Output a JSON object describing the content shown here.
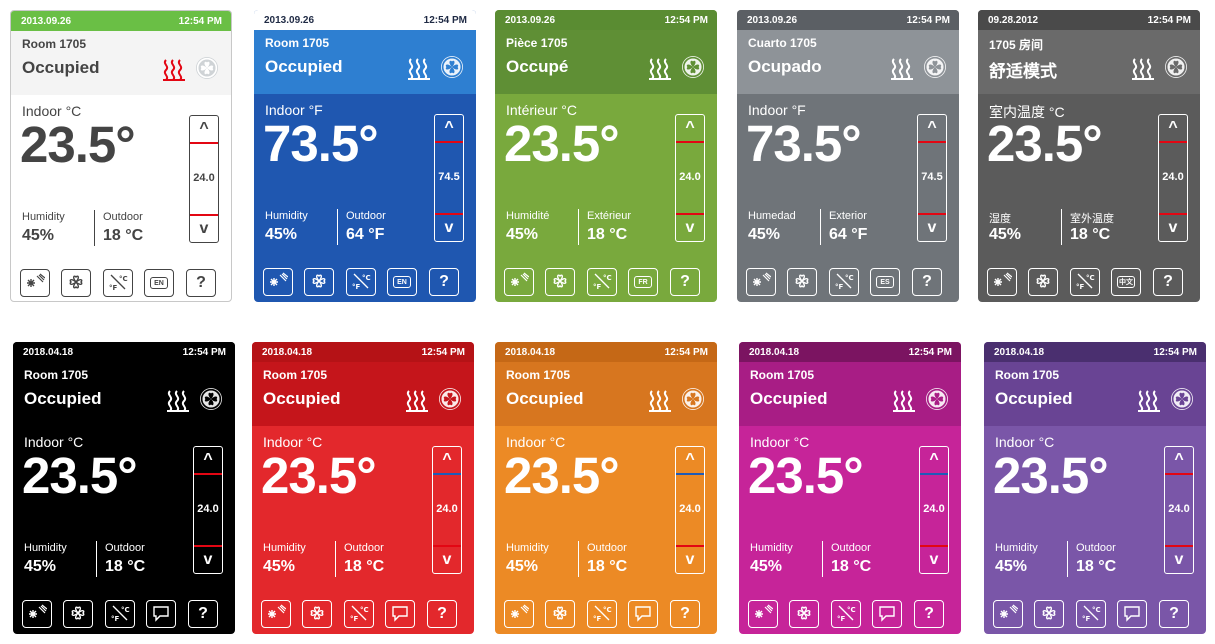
{
  "panels": [
    {
      "date": "2013.09.26",
      "time": "12:54 PM",
      "room": "Room 1705",
      "status": "Occupied",
      "indoor_label": "Indoor °C",
      "temp": "23.5°",
      "setpoint": "24.0",
      "humidity_label": "Humidity",
      "humidity": "45%",
      "outdoor_label": "Outdoor",
      "outdoor": "18 °C",
      "lang": "EN",
      "colors": {
        "topbar": "#6abf45",
        "header": "#f4f4f4",
        "body": "#ffffff",
        "text": "#444444",
        "topbar_text": "#ffffff",
        "accent": "#e30613"
      }
    },
    {
      "date": "2013.09.26",
      "time": "12:54 PM",
      "room": "Room 1705",
      "status": "Occupied",
      "indoor_label": "Indoor °F",
      "temp": "73.5°",
      "setpoint": "74.5",
      "humidity_label": "Humidity",
      "humidity": "45%",
      "outdoor_label": "Outdoor",
      "outdoor": "64 °F",
      "lang": "EN",
      "colors": {
        "topbar": "#ffffff",
        "header": "#2e7fd1",
        "body": "#1f57b0",
        "text": "#ffffff",
        "topbar_text": "#1f2a44",
        "accent": "#e30613"
      }
    },
    {
      "date": "2013.09.26",
      "time": "12:54 PM",
      "room": "Pièce 1705",
      "status": "Occupé",
      "indoor_label": "Intérieur °C",
      "temp": "23.5°",
      "setpoint": "24.0",
      "humidity_label": "Humidité",
      "humidity": "45%",
      "outdoor_label": "Extérieur",
      "outdoor": "18 °C",
      "lang": "FR",
      "colors": {
        "topbar": "#5a8c32",
        "header": "#5f8f35",
        "body": "#79a93d",
        "text": "#ffffff",
        "topbar_text": "#ffffff",
        "accent": "#e30613"
      }
    },
    {
      "date": "2013.09.26",
      "time": "12:54 PM",
      "room": "Cuarto 1705",
      "status": "Ocupado",
      "indoor_label": "Indoor °F",
      "temp": "73.5°",
      "setpoint": "74.5",
      "humidity_label": "Humedad",
      "humidity": "45%",
      "outdoor_label": "Exterior",
      "outdoor": "64 °F",
      "lang": "ES",
      "colors": {
        "topbar": "#5b5f64",
        "header": "#8e9398",
        "body": "#6f7479",
        "text": "#ffffff",
        "topbar_text": "#ffffff",
        "accent": "#e30613"
      }
    },
    {
      "date": "09.28.2012",
      "time": "12:54 PM",
      "room": "1705 房间",
      "status": "舒适模式",
      "indoor_label": "室内温度 °C",
      "temp": "23.5°",
      "setpoint": "24.0",
      "humidity_label": "湿度",
      "humidity": "45%",
      "outdoor_label": "室外温度",
      "outdoor": "18 °C",
      "lang": "中文",
      "colors": {
        "topbar": "#4a4a4a",
        "header": "#6a6a6a",
        "body": "#5b5b5b",
        "text": "#ffffff",
        "topbar_text": "#ffffff",
        "accent": "#e30613"
      }
    },
    {
      "date": "2018.04.18",
      "time": "12:54 PM",
      "room": "Room 1705",
      "status": "Occupied",
      "indoor_label": "Indoor °C",
      "temp": "23.5°",
      "setpoint": "24.0",
      "humidity_label": "Humidity",
      "humidity": "45%",
      "outdoor_label": "Outdoor",
      "outdoor": "18 °C",
      "lang": "",
      "colors": {
        "topbar": "#000000",
        "header": "#000000",
        "body": "#000000",
        "text": "#ffffff",
        "topbar_text": "#ffffff",
        "accent": "#e30613"
      }
    },
    {
      "date": "2018.04.18",
      "time": "12:54 PM",
      "room": "Room 1705",
      "status": "Occupied",
      "indoor_label": "Indoor °C",
      "temp": "23.5°",
      "setpoint": "24.0",
      "humidity_label": "Humidity",
      "humidity": "45%",
      "outdoor_label": "Outdoor",
      "outdoor": "18 °C",
      "lang": "",
      "colors": {
        "topbar": "#b51216",
        "header": "#c5151b",
        "body": "#e3282c",
        "text": "#ffffff",
        "topbar_text": "#ffffff",
        "accent": "#1e5bb8"
      }
    },
    {
      "date": "2018.04.18",
      "time": "12:54 PM",
      "room": "Room 1705",
      "status": "Occupied",
      "indoor_label": "Indoor °C",
      "temp": "23.5°",
      "setpoint": "24.0",
      "humidity_label": "Humidity",
      "humidity": "45%",
      "outdoor_label": "Outdoor",
      "outdoor": "18 °C",
      "lang": "",
      "colors": {
        "topbar": "#c56816",
        "header": "#d7761f",
        "body": "#ec8a25",
        "text": "#ffffff",
        "topbar_text": "#ffffff",
        "accent": "#1e5bb8"
      }
    },
    {
      "date": "2018.04.18",
      "time": "12:54 PM",
      "room": "Room 1705",
      "status": "Occupied",
      "indoor_label": "Indoor °C",
      "temp": "23.5°",
      "setpoint": "24.0",
      "humidity_label": "Humidity",
      "humidity": "45%",
      "outdoor_label": "Outdoor",
      "outdoor": "18 °C",
      "lang": "",
      "colors": {
        "topbar": "#7b1461",
        "header": "#a81d85",
        "body": "#c62499",
        "text": "#ffffff",
        "topbar_text": "#ffffff",
        "accent": "#1e5bb8"
      }
    },
    {
      "date": "2018.04.18",
      "time": "12:54 PM",
      "room": "Room 1705",
      "status": "Occupied",
      "indoor_label": "Indoor °C",
      "temp": "23.5°",
      "setpoint": "24.0",
      "humidity_label": "Humidity",
      "humidity": "45%",
      "outdoor_label": "Outdoor",
      "outdoor": "18 °C",
      "lang": "",
      "colors": {
        "topbar": "#4a2f6f",
        "header": "#694494",
        "body": "#7a56a8",
        "text": "#ffffff",
        "topbar_text": "#ffffff",
        "accent": "#e30613"
      }
    }
  ]
}
